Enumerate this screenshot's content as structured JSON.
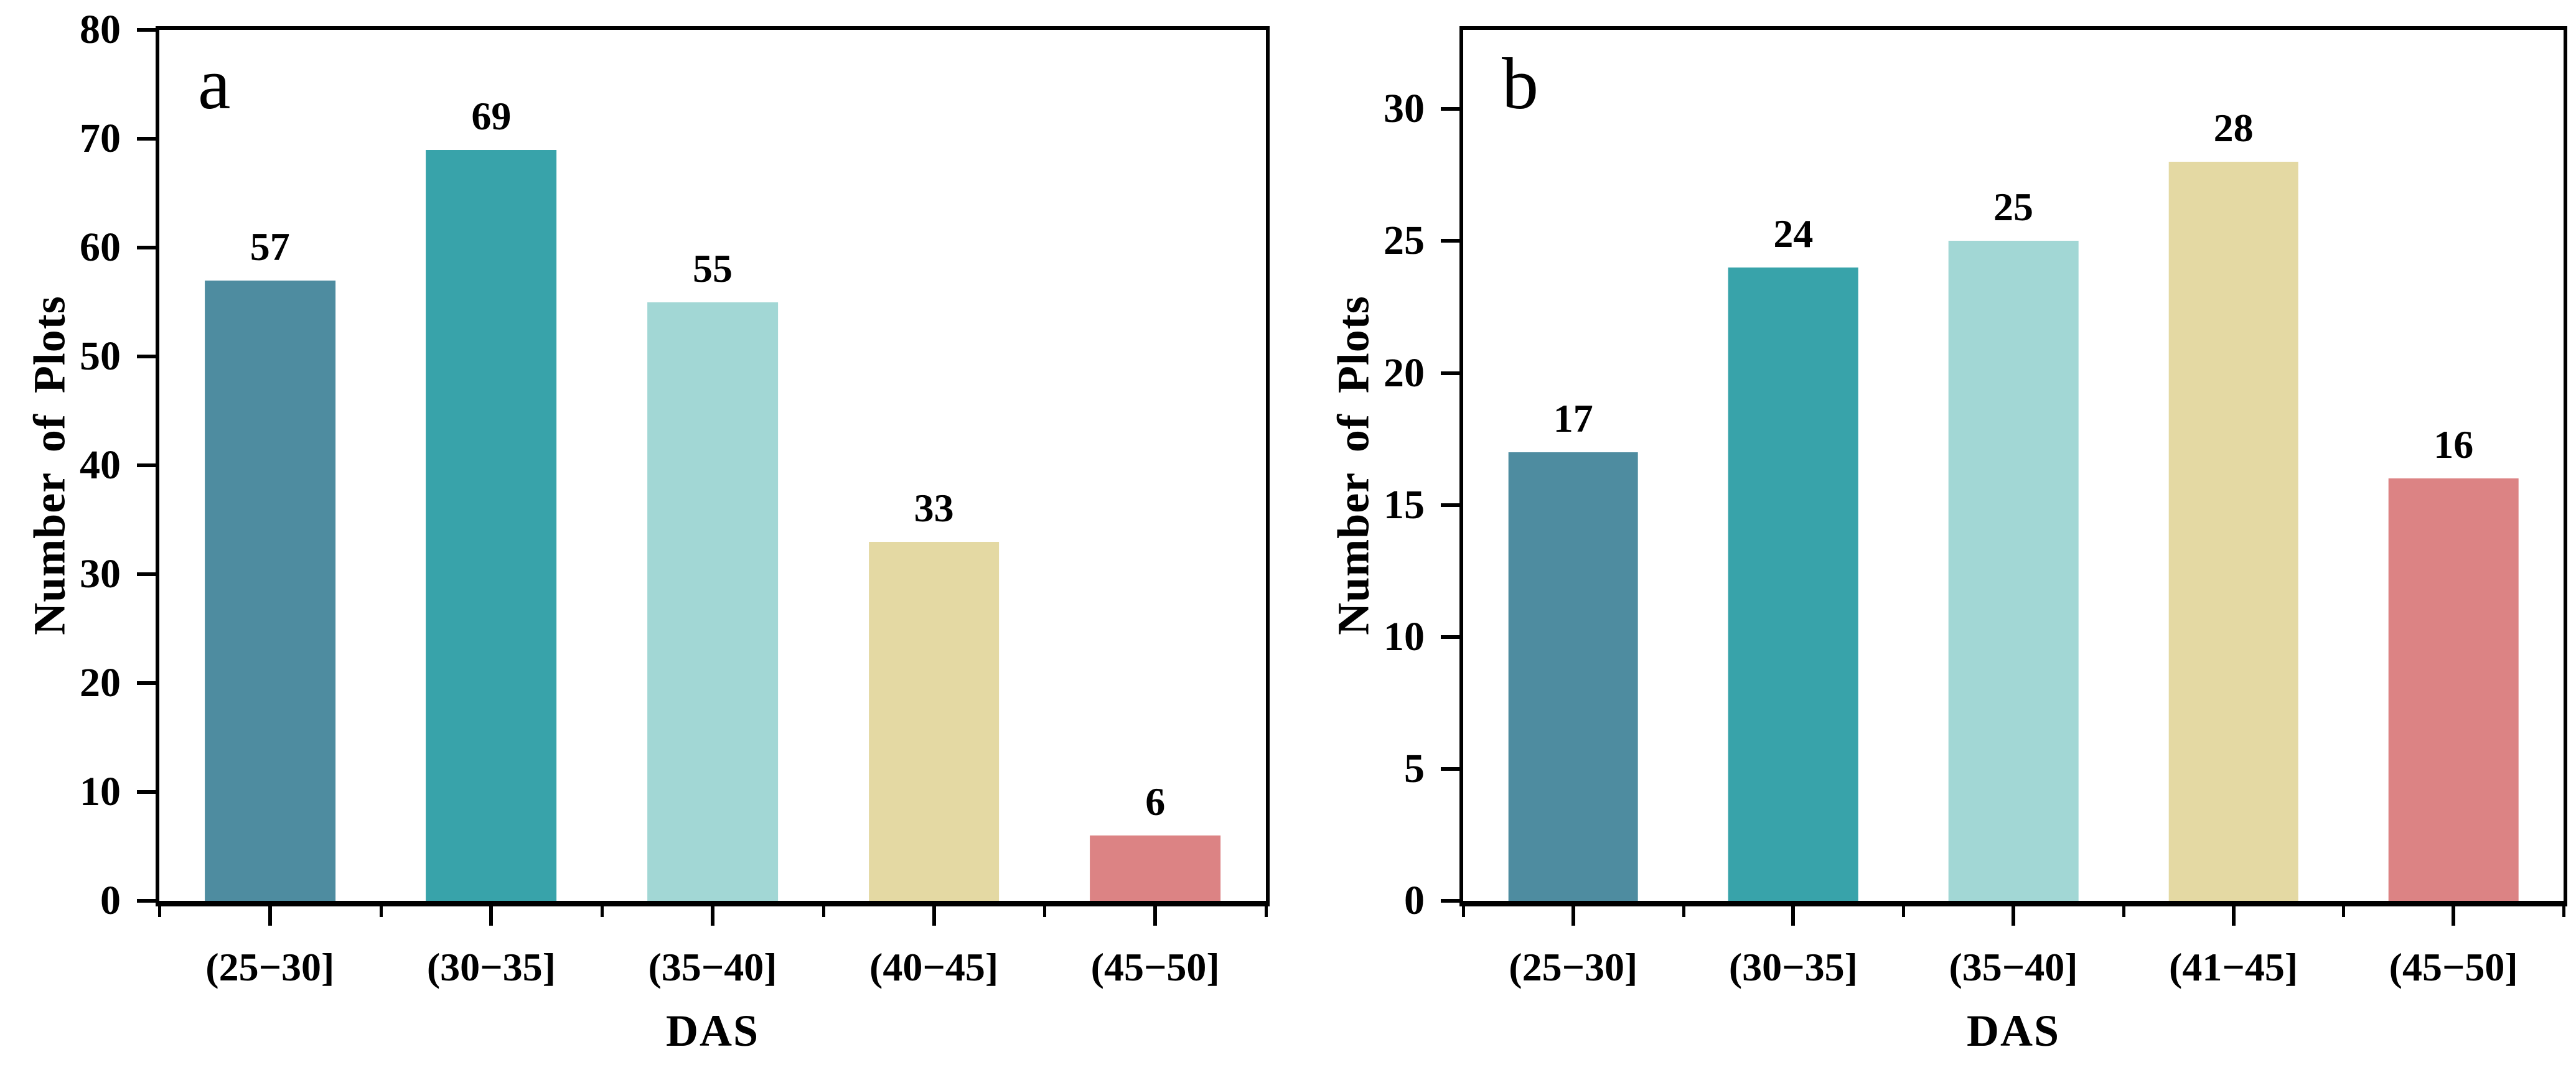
{
  "figure": {
    "background_color": "#ffffff",
    "axis_color": "#000000",
    "text_color": "#000000"
  },
  "chart_data": [
    {
      "type": "bar",
      "panel_label": "a",
      "title": "",
      "xlabel": "DAS",
      "ylabel": "Number of Plots",
      "categories": [
        "(25−30]",
        "(30−35]",
        "(35−40]",
        "(40−45]",
        "(45−50]"
      ],
      "values": [
        57,
        69,
        55,
        33,
        6
      ],
      "bar_colors": [
        "#4e8ca0",
        "#38a3aa",
        "#a2d7d5",
        "#e4d9a3",
        "#dc8384"
      ],
      "ylim": [
        0,
        80
      ],
      "yticks": [
        0,
        10,
        20,
        30,
        40,
        50,
        60,
        70,
        80
      ],
      "grid": false,
      "legend_position": "none",
      "value_labels_shown": true
    },
    {
      "type": "bar",
      "panel_label": "b",
      "title": "",
      "xlabel": "DAS",
      "ylabel": "Number of Plots",
      "categories": [
        "(25−30]",
        "(30−35]",
        "(35−40]",
        "(41−45]",
        "(45−50]"
      ],
      "values": [
        17,
        24,
        25,
        28,
        16
      ],
      "bar_colors": [
        "#4e8ca0",
        "#38a3aa",
        "#a2d7d5",
        "#e4d9a3",
        "#dc8384"
      ],
      "ylim": [
        0,
        33
      ],
      "yticks": [
        0,
        5,
        10,
        15,
        20,
        25,
        30
      ],
      "grid": false,
      "legend_position": "none",
      "value_labels_shown": true
    }
  ]
}
